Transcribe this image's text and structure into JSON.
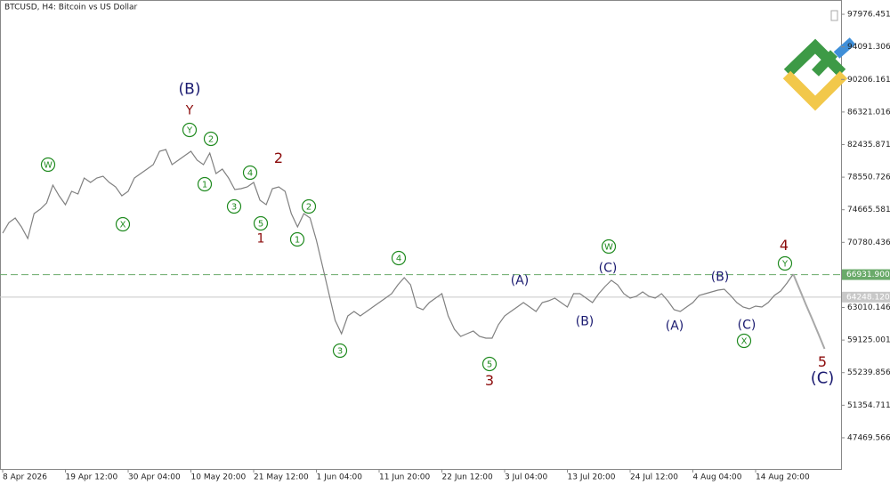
{
  "chart_data": {
    "type": "line",
    "title": "BTCUSD, H4:  Bitcoin vs US Dollar",
    "categories": [
      "8 Apr 2026",
      null,
      null,
      null,
      null,
      null,
      null,
      null,
      null,
      null,
      "19 Apr 12:00",
      null,
      null,
      null,
      null,
      null,
      null,
      null,
      null,
      null,
      "30 Apr 04:00",
      null,
      null,
      null,
      null,
      null,
      null,
      null,
      null,
      null,
      "10 May 20:00",
      null,
      null,
      null,
      null,
      null,
      null,
      null,
      null,
      null,
      "21 May 12:00",
      null,
      null,
      null,
      null,
      null,
      null,
      null,
      null,
      null,
      "1 Jun 04:00",
      null,
      null,
      null,
      null,
      null,
      null,
      null,
      null,
      null,
      "11 Jun 20:00",
      null,
      null,
      null,
      null,
      null,
      null,
      null,
      null,
      null,
      "22 Jun 12:00",
      null,
      null,
      null,
      null,
      null,
      null,
      null,
      null,
      null,
      "3 Jul 04:00",
      null,
      null,
      null,
      null,
      null,
      null,
      null,
      null,
      null,
      "13 Jul 20:00",
      null,
      null,
      null,
      null,
      null,
      null,
      null,
      null,
      null,
      "24 Jul 12:00",
      null,
      null,
      null,
      null,
      null,
      null,
      null,
      null,
      null,
      "4 Aug 04:00",
      null,
      null,
      null,
      null,
      null,
      null,
      null,
      null,
      null,
      "14 Aug 20:00",
      null,
      null,
      null,
      null,
      null,
      null,
      null,
      null,
      null,
      null,
      null
    ],
    "series": [
      {
        "color": "#808080",
        "values": [
          71870,
          73150,
          73680,
          72620,
          71240,
          74210,
          74740,
          75480,
          77600,
          76330,
          75270,
          76860,
          76540,
          78450,
          77920,
          78450,
          78670,
          77920,
          77390,
          76330,
          76860,
          78450,
          78990,
          79520,
          80050,
          81640,
          81850,
          80050,
          80580,
          81110,
          81640,
          80580,
          80050,
          81430,
          78990,
          79520,
          78450,
          77070,
          77180,
          77390,
          77920,
          75800,
          75270,
          77180,
          77390,
          76860,
          74210,
          72620,
          74210,
          73680,
          71030,
          67840,
          64660,
          61470,
          59880,
          62000,
          62530,
          62000,
          62530,
          63070,
          63600,
          64130,
          64660,
          65720,
          66570,
          65720,
          63070,
          62750,
          63600,
          64130,
          64660,
          62000,
          60410,
          59560,
          59880,
          60200,
          59560,
          59350,
          59350,
          60940,
          62000,
          62530,
          63070,
          63600,
          63070,
          62530,
          63600,
          63810,
          64130,
          63600,
          63070,
          64660,
          64660,
          64130,
          63600,
          64660,
          65510,
          66250,
          65720,
          64660,
          64130,
          64340,
          64870,
          64340,
          64130,
          64660,
          63810,
          62750,
          62530,
          63070,
          63600,
          64450,
          64660,
          64870,
          65080,
          65190,
          64450,
          63600,
          63070,
          62850,
          63170,
          63070,
          63600,
          64450,
          64980,
          65930,
          66990,
          null,
          null,
          null,
          null,
          null
        ]
      },
      {
        "color": "#a8a8a8",
        "values": [
          null,
          null,
          null,
          null,
          null,
          null,
          null,
          null,
          null,
          null,
          null,
          null,
          null,
          null,
          null,
          null,
          null,
          null,
          null,
          null,
          null,
          null,
          null,
          null,
          null,
          null,
          null,
          null,
          null,
          null,
          null,
          null,
          null,
          null,
          null,
          null,
          null,
          null,
          null,
          null,
          null,
          null,
          null,
          null,
          null,
          null,
          null,
          null,
          null,
          null,
          null,
          null,
          null,
          null,
          null,
          null,
          null,
          null,
          null,
          null,
          null,
          null,
          null,
          null,
          null,
          null,
          null,
          null,
          null,
          null,
          null,
          null,
          null,
          null,
          null,
          null,
          null,
          null,
          null,
          null,
          null,
          null,
          null,
          null,
          null,
          null,
          null,
          null,
          null,
          null,
          null,
          null,
          null,
          null,
          null,
          null,
          null,
          null,
          null,
          null,
          null,
          null,
          null,
          null,
          null,
          null,
          null,
          null,
          null,
          null,
          null,
          null,
          null,
          null,
          null,
          null,
          null,
          null,
          null,
          null,
          null,
          null,
          null,
          null,
          null,
          null,
          66990,
          65190,
          63380,
          61680,
          59880,
          58080
        ]
      }
    ],
    "ylim": [
      43750,
      99680
    ],
    "yticks": [
      97976.451,
      94091.306,
      90206.161,
      86321.016,
      82435.871,
      78550.726,
      74665.581,
      70780.436,
      63010.146,
      59125.001,
      55239.856,
      51354.711,
      47469.566
    ],
    "hlines": [
      {
        "value": 66931.9,
        "label": "66931.900",
        "color": "#6aaa6a",
        "style": "dashed"
      },
      {
        "value": 64248.12,
        "label": "64248.120",
        "color": "#c8c8c8",
        "style": "solid"
      }
    ],
    "annotations": [
      {
        "text": "W",
        "color": "#1f8a1f",
        "circled": true
      },
      {
        "text": "X",
        "color": "#1f8a1f",
        "circled": true
      },
      {
        "text": "Y",
        "color": "#1f8a1f",
        "circled": true
      },
      {
        "text": "2",
        "color": "#1f8a1f",
        "circled": true
      },
      {
        "text": "1",
        "color": "#1f8a1f",
        "circled": true
      },
      {
        "text": "3",
        "color": "#1f8a1f",
        "circled": true
      },
      {
        "text": "4",
        "color": "#1f8a1f",
        "circled": true
      },
      {
        "text": "5",
        "color": "#1f8a1f",
        "circled": true
      },
      {
        "text": "2",
        "color": "#1f8a1f",
        "circled": true
      },
      {
        "text": "1",
        "color": "#1f8a1f",
        "circled": true
      },
      {
        "text": "3",
        "color": "#1f8a1f",
        "circled": true
      },
      {
        "text": "4",
        "color": "#1f8a1f",
        "circled": true
      },
      {
        "text": "5",
        "color": "#1f8a1f",
        "circled": true
      },
      {
        "text": "W",
        "color": "#1f8a1f",
        "circled": true
      },
      {
        "text": "X",
        "color": "#1f8a1f",
        "circled": true
      },
      {
        "text": "Y",
        "color": "#1f8a1f",
        "circled": true
      },
      {
        "text": "(B)",
        "color": "#1a1a70",
        "circled": false
      },
      {
        "text": "(A)",
        "color": "#1a1a70",
        "circled": false
      },
      {
        "text": "(B)",
        "color": "#1a1a70",
        "circled": false
      },
      {
        "text": "(C)",
        "color": "#1a1a70",
        "circled": false
      },
      {
        "text": "(A)",
        "color": "#1a1a70",
        "circled": false
      },
      {
        "text": "(B)",
        "color": "#1a1a70",
        "circled": false
      },
      {
        "text": "(C)",
        "color": "#1a1a70",
        "circled": false
      },
      {
        "text": "(C)",
        "color": "#1a1a70",
        "circled": false
      },
      {
        "text": "Y",
        "color": "#8b0a0a",
        "circled": false
      },
      {
        "text": "2",
        "color": "#8b0a0a",
        "circled": false
      },
      {
        "text": "1",
        "color": "#8b0a0a",
        "circled": false
      },
      {
        "text": "3",
        "color": "#8b0a0a",
        "circled": false
      },
      {
        "text": "4",
        "color": "#8b0a0a",
        "circled": false
      },
      {
        "text": "5",
        "color": "#8b0a0a",
        "circled": false
      }
    ]
  }
}
